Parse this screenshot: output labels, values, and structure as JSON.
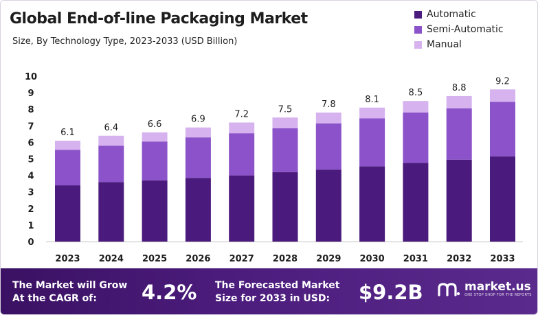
{
  "header": {
    "title": "Global End-of-line Packaging Market",
    "subtitle": "Size, By Technology Type, 2023-2033  (USD Billion)"
  },
  "legend": [
    {
      "label": "Automatic",
      "color": "#4a1a7c"
    },
    {
      "label": "Semi-Automatic",
      "color": "#8b52c9"
    },
    {
      "label": "Manual",
      "color": "#d6b3ee"
    }
  ],
  "chart_data": {
    "type": "bar",
    "stacked": true,
    "categories": [
      "2023",
      "2024",
      "2025",
      "2026",
      "2027",
      "2028",
      "2029",
      "2030",
      "2031",
      "2032",
      "2033"
    ],
    "series": [
      {
        "name": "Automatic",
        "color": "#4a1a7c",
        "values": [
          3.4,
          3.6,
          3.7,
          3.85,
          4.0,
          4.2,
          4.35,
          4.55,
          4.75,
          4.95,
          5.15
        ]
      },
      {
        "name": "Semi-Automatic",
        "color": "#8b52c9",
        "values": [
          2.15,
          2.2,
          2.35,
          2.45,
          2.55,
          2.65,
          2.8,
          2.9,
          3.05,
          3.1,
          3.3
        ]
      },
      {
        "name": "Manual",
        "color": "#d6b3ee",
        "values": [
          0.55,
          0.6,
          0.55,
          0.6,
          0.65,
          0.65,
          0.65,
          0.65,
          0.7,
          0.75,
          0.75
        ]
      }
    ],
    "totals": [
      6.1,
      6.4,
      6.6,
      6.9,
      7.2,
      7.5,
      7.8,
      8.1,
      8.5,
      8.8,
      9.2
    ],
    "total_labels": [
      "6.1",
      "6.4",
      "6.6",
      "6.9",
      "7.2",
      "7.5",
      "7.8",
      "8.1",
      "8.5",
      "8.8",
      "9.2"
    ],
    "yticks": [
      "0",
      "1",
      "2",
      "3",
      "4",
      "5",
      "6",
      "7",
      "8",
      "9",
      "10"
    ],
    "ylim": [
      0,
      10
    ],
    "xlabel": "",
    "ylabel": "",
    "grid": false,
    "legend_position": "top-right"
  },
  "footer": {
    "cagr_text_line1": "The Market will Grow",
    "cagr_text_line2": "At the CAGR of:",
    "cagr_value": "4.2%",
    "forecast_text_line1": "The Forecasted Market",
    "forecast_text_line2": "Size for 2033 in USD:",
    "forecast_value": "$9.2B",
    "brand_name": "market.us",
    "brand_tagline": "ONE STOP SHOP FOR THE REPORTS"
  }
}
